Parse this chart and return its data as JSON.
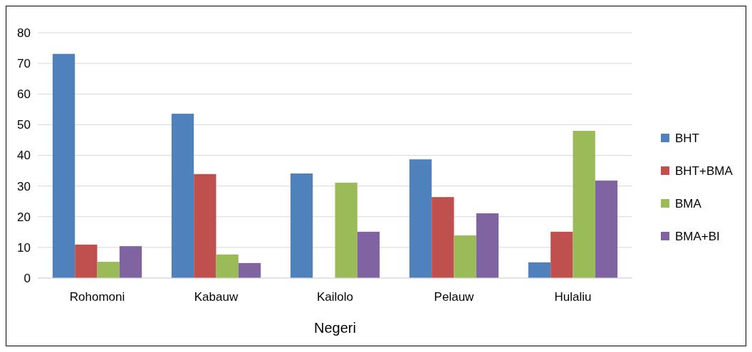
{
  "chart_data": {
    "type": "bar",
    "xlabel": "Negeri",
    "categories": [
      "Rohomoni",
      "Kabauw",
      "Kailolo",
      "Pelauw",
      "Hulaliu"
    ],
    "series": [
      {
        "name": "BHT",
        "color": "#4f81bd",
        "values": [
          73.1,
          53.6,
          34.1,
          38.7,
          5.1
        ]
      },
      {
        "name": "BHT+BMA",
        "color": "#c0504d",
        "values": [
          10.9,
          33.9,
          0,
          26.4,
          15.1
        ]
      },
      {
        "name": "BMA",
        "color": "#9bbb59",
        "values": [
          5.3,
          7.7,
          31.1,
          13.9,
          48
        ]
      },
      {
        "name": "BMA+BI",
        "color": "#8064a2",
        "values": [
          10.4,
          4.9,
          15.1,
          21.1,
          31.8
        ]
      }
    ],
    "ylim": [
      0,
      80
    ],
    "yticks": [
      0,
      10,
      20,
      30,
      40,
      50,
      60,
      70,
      80
    ],
    "grid": "y",
    "legend": "right"
  }
}
